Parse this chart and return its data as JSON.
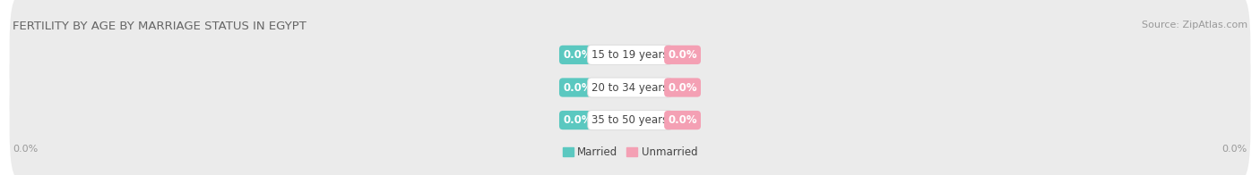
{
  "title": "FERTILITY BY AGE BY MARRIAGE STATUS IN EGYPT",
  "source": "Source: ZipAtlas.com",
  "categories": [
    "15 to 19 years",
    "20 to 34 years",
    "35 to 50 years"
  ],
  "married_values": [
    0.0,
    0.0,
    0.0
  ],
  "unmarried_values": [
    0.0,
    0.0,
    0.0
  ],
  "married_color": "#5BC8C0",
  "unmarried_color": "#F4A0B4",
  "bar_bg_color": "#EBEBEB",
  "title_fontsize": 9.5,
  "source_fontsize": 8,
  "label_fontsize": 8.5,
  "axis_label_fontsize": 8,
  "background_color": "#FFFFFF",
  "legend_married": "Married",
  "legend_unmarried": "Unmarried",
  "left_axis_label": "0.0%",
  "right_axis_label": "0.0%",
  "title_color": "#666666",
  "source_color": "#999999",
  "axis_label_color": "#999999",
  "cat_label_color": "#444444",
  "value_label_color": "#FFFFFF"
}
